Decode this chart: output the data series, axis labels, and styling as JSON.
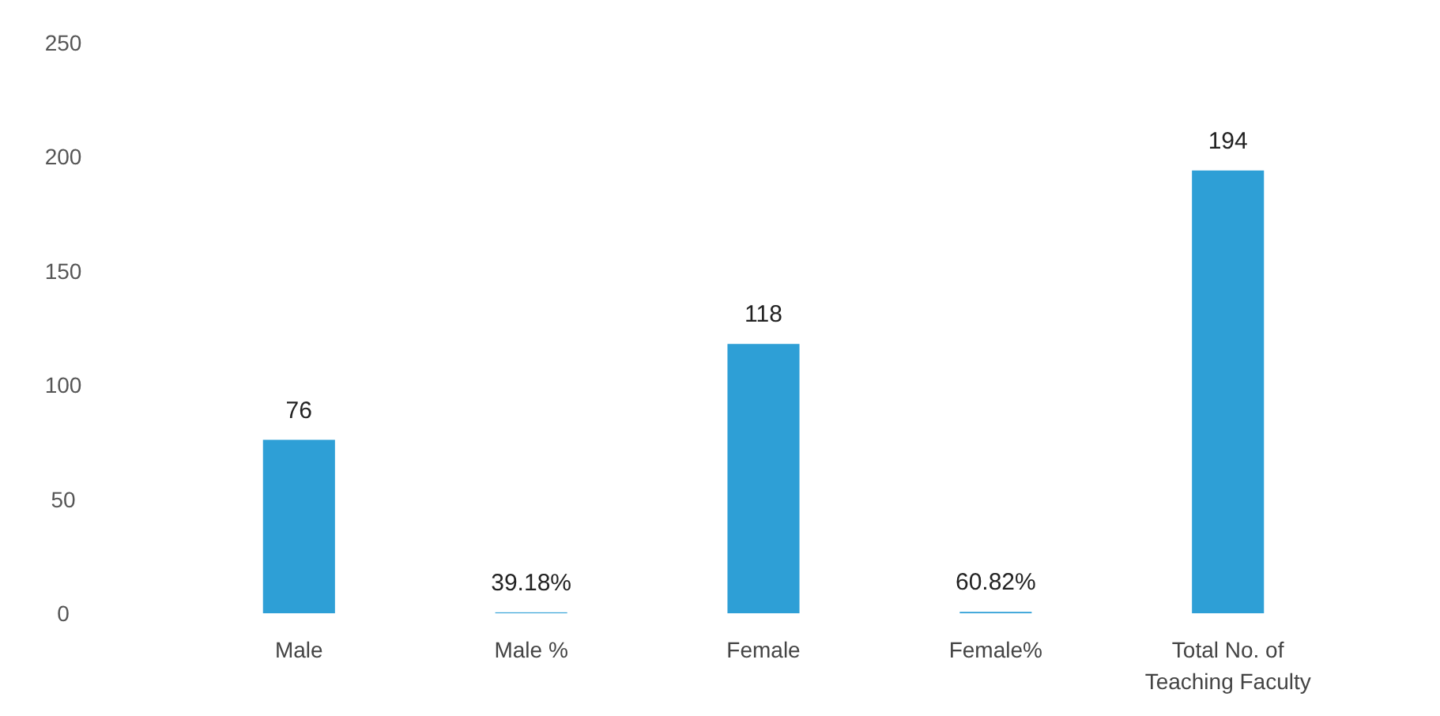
{
  "chart_data": {
    "type": "bar",
    "categories": [
      "Male",
      "Male %",
      "Female",
      "Female%",
      "Total No. of Teaching Faculty"
    ],
    "values": [
      76,
      0.3918,
      118,
      0.6082,
      194
    ],
    "value_labels": [
      "76",
      "39.18%",
      "118",
      "60.82%",
      "194"
    ],
    "color": "#2e9fd6",
    "ylim": [
      0,
      250
    ],
    "yticks": [
      0,
      50,
      100,
      150,
      200,
      250
    ]
  }
}
